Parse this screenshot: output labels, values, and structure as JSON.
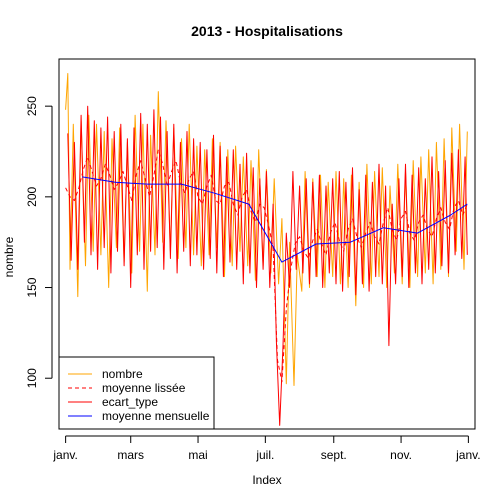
{
  "chart_data": {
    "type": "line",
    "title": "2013 - Hospitalisations",
    "xlabel": "Index",
    "ylabel": "nombre",
    "x_ticks": [
      "janv.",
      "mars",
      "mai",
      "juil.",
      "sept.",
      "nov.",
      "janv."
    ],
    "x_tick_days": [
      0,
      59,
      120,
      181,
      243,
      304,
      365
    ],
    "xlim": [
      -6,
      371
    ],
    "y_ticks": [
      100,
      150,
      200,
      250
    ],
    "ylim": [
      72,
      276
    ],
    "grid": false,
    "legend_position": "bottom-left",
    "colors": {
      "nombre": "#FFA500",
      "moyenne_lissee": "#FF0000",
      "ecart_type": "#FF0000",
      "moyenne_mensuelle": "#0000FF"
    },
    "series": [
      {
        "name": "nombre",
        "style": "solid",
        "note": "daily counts with a strong weekly cycle; the sampled points below approximate the envelope",
        "x": [
          0,
          2,
          4,
          7,
          11,
          14,
          18,
          21,
          25,
          28,
          32,
          35,
          39,
          42,
          46,
          49,
          53,
          56,
          60,
          63,
          67,
          70,
          74,
          77,
          81,
          84,
          88,
          91,
          95,
          98,
          102,
          105,
          109,
          112,
          116,
          119,
          123,
          126,
          130,
          133,
          137,
          140,
          144,
          147,
          151,
          154,
          158,
          161,
          165,
          168,
          172,
          175,
          179,
          182,
          186,
          189,
          193,
          196,
          200,
          203,
          207,
          210,
          214,
          217,
          221,
          224,
          228,
          231,
          235,
          238,
          242,
          245,
          249,
          252,
          256,
          259,
          263,
          266,
          270,
          273,
          277,
          280,
          284,
          287,
          291,
          294,
          298,
          301,
          305,
          308,
          312,
          315,
          319,
          322,
          326,
          329,
          333,
          336,
          340,
          343,
          347,
          350,
          354,
          357,
          361,
          364
        ],
        "y": [
          248,
          268,
          160,
          240,
          145,
          242,
          162,
          245,
          170,
          240,
          168,
          236,
          150,
          232,
          172,
          238,
          164,
          230,
          158,
          245,
          170,
          240,
          148,
          234,
          168,
          258,
          175,
          242,
          170,
          238,
          166,
          232,
          172,
          240,
          168,
          228,
          162,
          226,
          168,
          232,
          172,
          230,
          156,
          226,
          162,
          228,
          170,
          222,
          162,
          220,
          154,
          226,
          162,
          215,
          158,
          210,
          152,
          188,
          97,
          175,
          96,
          168,
          148,
          214,
          150,
          210,
          156,
          212,
          150,
          208,
          156,
          214,
          152,
          210,
          150,
          212,
          140,
          208,
          150,
          218,
          152,
          214,
          156,
          216,
          150,
          206,
          158,
          218,
          152,
          214,
          150,
          220,
          156,
          222,
          158,
          226,
          152,
          230,
          160,
          232,
          156,
          238,
          170,
          240,
          160,
          236
        ]
      },
      {
        "name": "moyenne lissée",
        "style": "dashed",
        "x": [
          0,
          4,
          8,
          12,
          16,
          20,
          24,
          28,
          32,
          36,
          40,
          44,
          48,
          52,
          56,
          60,
          64,
          68,
          72,
          76,
          80,
          84,
          88,
          92,
          96,
          100,
          104,
          108,
          112,
          116,
          120,
          124,
          128,
          132,
          136,
          140,
          144,
          148,
          152,
          156,
          160,
          164,
          168,
          172,
          176,
          180,
          184,
          188,
          192,
          196,
          200,
          204,
          208,
          212,
          216,
          220,
          224,
          228,
          232,
          236,
          240,
          244,
          248,
          252,
          256,
          260,
          264,
          268,
          272,
          276,
          280,
          284,
          288,
          292,
          296,
          300,
          304,
          308,
          312,
          316,
          320,
          324,
          328,
          332,
          336,
          340,
          344,
          348,
          352,
          356,
          360,
          364
        ],
        "y": [
          205,
          200,
          198,
          205,
          215,
          222,
          214,
          206,
          210,
          218,
          212,
          204,
          208,
          214,
          206,
          198,
          212,
          220,
          210,
          200,
          212,
          226,
          218,
          206,
          214,
          220,
          208,
          202,
          210,
          214,
          200,
          196,
          206,
          212,
          198,
          196,
          206,
          208,
          196,
          190,
          200,
          204,
          192,
          186,
          196,
          194,
          184,
          172,
          110,
          98,
          138,
          160,
          174,
          178,
          170,
          166,
          176,
          182,
          174,
          168,
          180,
          186,
          176,
          170,
          182,
          188,
          178,
          172,
          180,
          186,
          178,
          174,
          186,
          194,
          182,
          176,
          188,
          192,
          180,
          176,
          186,
          190,
          182,
          178,
          188,
          194,
          186,
          182,
          194,
          198,
          190,
          196
        ]
      },
      {
        "name": "ecart_type",
        "style": "solid",
        "x": [
          2,
          5,
          8,
          11,
          14,
          17,
          20,
          23,
          26,
          29,
          32,
          35,
          38,
          41,
          44,
          47,
          50,
          53,
          56,
          59,
          62,
          65,
          68,
          71,
          74,
          77,
          80,
          83,
          86,
          89,
          92,
          95,
          98,
          101,
          104,
          107,
          110,
          113,
          116,
          119,
          122,
          125,
          128,
          131,
          134,
          137,
          140,
          143,
          146,
          149,
          152,
          155,
          158,
          161,
          164,
          167,
          170,
          173,
          176,
          179,
          182,
          185,
          188,
          191,
          194,
          197,
          200,
          203,
          206,
          209,
          212,
          215,
          218,
          221,
          224,
          227,
          230,
          233,
          236,
          239,
          242,
          245,
          248,
          251,
          254,
          257,
          260,
          263,
          266,
          269,
          272,
          275,
          278,
          281,
          284,
          287,
          290,
          293,
          296,
          299,
          302,
          305,
          308,
          311,
          314,
          317,
          320,
          323,
          326,
          329,
          332,
          335,
          338,
          341,
          344,
          347,
          350,
          353,
          356,
          359,
          362,
          364
        ],
        "y": [
          235,
          165,
          230,
          160,
          245,
          175,
          250,
          168,
          242,
          160,
          238,
          172,
          244,
          158,
          236,
          170,
          240,
          162,
          232,
          150,
          238,
          168,
          246,
          160,
          240,
          170,
          248,
          172,
          244,
          160,
          236,
          166,
          240,
          158,
          230,
          170,
          236,
          162,
          232,
          168,
          230,
          160,
          226,
          166,
          234,
          158,
          228,
          156,
          222,
          164,
          226,
          160,
          218,
          152,
          224,
          158,
          216,
          150,
          210,
          160,
          214,
          150,
          196,
          120,
          74,
          118,
          180,
          150,
          214,
          160,
          206,
          158,
          210,
          152,
          208,
          156,
          212,
          150,
          206,
          158,
          210,
          152,
          214,
          148,
          208,
          156,
          216,
          146,
          204,
          152,
          212,
          148,
          208,
          156,
          218,
          152,
          206,
          118,
          196,
          152,
          210,
          156,
          218,
          150,
          212,
          158,
          216,
          152,
          210,
          160,
          222,
          158,
          214,
          162,
          220,
          158,
          224,
          168,
          226,
          166,
          222,
          168
        ]
      },
      {
        "name": "moyenne mensuelle",
        "style": "solid",
        "x": [
          15,
          45,
          74,
          105,
          135,
          166,
          196,
          227,
          258,
          288,
          319,
          349,
          364
        ],
        "y": [
          211,
          208,
          207,
          207,
          202,
          196,
          164,
          174,
          175,
          183,
          180,
          190,
          196
        ]
      }
    ],
    "legend": [
      "nombre",
      "moyenne lissée",
      "ecart_type",
      "moyenne mensuelle"
    ]
  }
}
